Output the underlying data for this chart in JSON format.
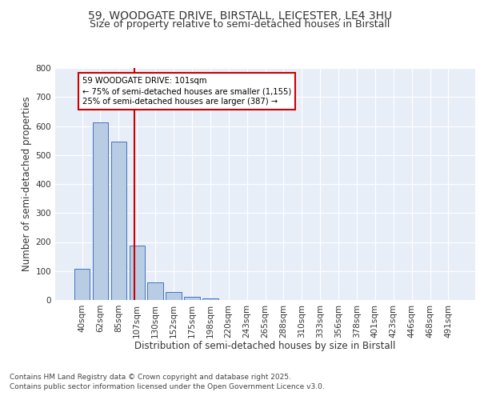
{
  "title1": "59, WOODGATE DRIVE, BIRSTALL, LEICESTER, LE4 3HU",
  "title2": "Size of property relative to semi-detached houses in Birstall",
  "xlabel": "Distribution of semi-detached houses by size in Birstall",
  "ylabel": "Number of semi-detached properties",
  "categories": [
    "40sqm",
    "62sqm",
    "85sqm",
    "107sqm",
    "130sqm",
    "152sqm",
    "175sqm",
    "198sqm",
    "220sqm",
    "243sqm",
    "265sqm",
    "288sqm",
    "310sqm",
    "333sqm",
    "356sqm",
    "378sqm",
    "401sqm",
    "423sqm",
    "446sqm",
    "468sqm",
    "491sqm"
  ],
  "values": [
    108,
    612,
    547,
    188,
    62,
    27,
    10,
    5,
    0,
    0,
    0,
    0,
    0,
    0,
    0,
    0,
    0,
    0,
    0,
    0,
    0
  ],
  "bar_color": "#b8cce4",
  "bar_edge_color": "#4472c4",
  "vline_color": "#cc0000",
  "annotation_title": "59 WOODGATE DRIVE: 101sqm",
  "annotation_line1": "← 75% of semi-detached houses are smaller (1,155)",
  "annotation_line2": "25% of semi-detached houses are larger (387) →",
  "annotation_box_color": "#cc0000",
  "footer1": "Contains HM Land Registry data © Crown copyright and database right 2025.",
  "footer2": "Contains public sector information licensed under the Open Government Licence v3.0.",
  "ylim": [
    0,
    800
  ],
  "yticks": [
    0,
    100,
    200,
    300,
    400,
    500,
    600,
    700,
    800
  ],
  "bg_color": "#e8eef8",
  "grid_color": "#ffffff",
  "title_fontsize": 10,
  "subtitle_fontsize": 9,
  "axis_fontsize": 8.5,
  "tick_fontsize": 7.5,
  "footer_fontsize": 6.5
}
